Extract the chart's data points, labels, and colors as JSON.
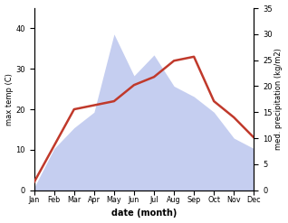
{
  "months": [
    "Jan",
    "Feb",
    "Mar",
    "Apr",
    "May",
    "Jun",
    "Jul",
    "Aug",
    "Sep",
    "Oct",
    "Nov",
    "Dec"
  ],
  "month_indices": [
    1,
    2,
    3,
    4,
    5,
    6,
    7,
    8,
    9,
    10,
    11,
    12
  ],
  "temperature": [
    2,
    11,
    20,
    21,
    22,
    26,
    28,
    32,
    33,
    22,
    18,
    13
  ],
  "precipitation": [
    0.5,
    8,
    12,
    15,
    30,
    22,
    26,
    20,
    18,
    15,
    10,
    8
  ],
  "temp_color": "#c0392b",
  "precip_fill_color": "#c5cef0",
  "ylabel_left": "max temp (C)",
  "ylabel_right": "med. precipitation (kg/m2)",
  "xlabel": "date (month)",
  "ylim_left": [
    0,
    45
  ],
  "ylim_right": [
    0,
    35
  ],
  "yticks_left": [
    0,
    10,
    20,
    30,
    40
  ],
  "yticks_right": [
    0,
    5,
    10,
    15,
    20,
    25,
    30,
    35
  ],
  "temp_linewidth": 1.8,
  "background_color": "#ffffff"
}
